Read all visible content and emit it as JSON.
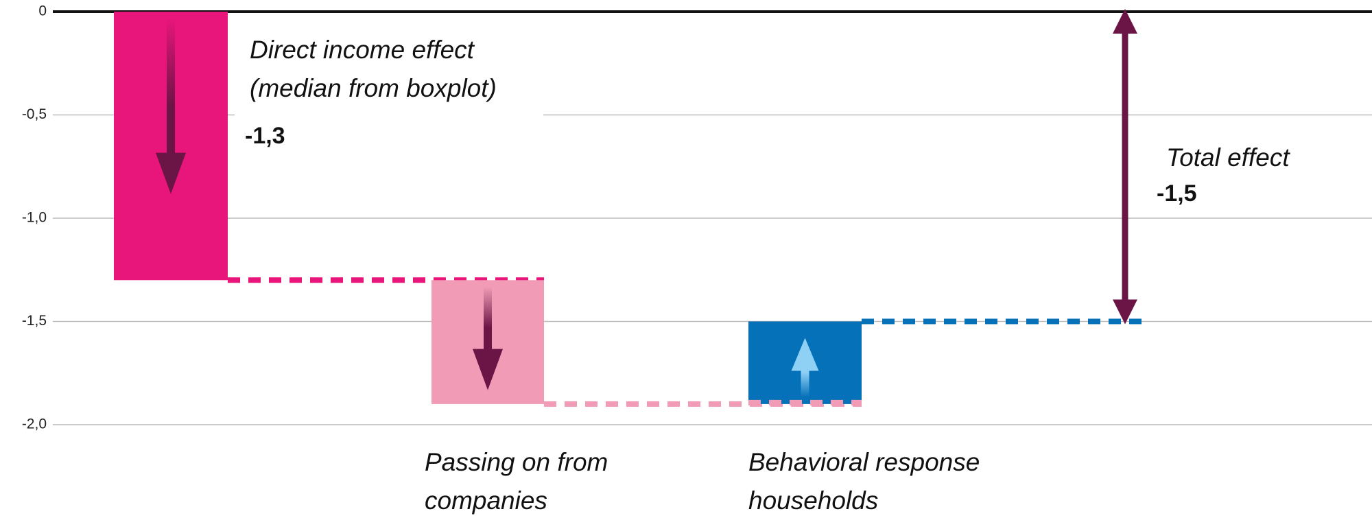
{
  "chart_data": {
    "type": "waterfall",
    "categories": [
      [
        "Direct income effect",
        "(median from boxplot)"
      ],
      [
        "Passing on from",
        "companies"
      ],
      [
        "Behavioral response",
        "households"
      ],
      [
        "Total effect"
      ]
    ],
    "values": [
      -1.3,
      -0.6,
      0.4,
      -1.5
    ],
    "value_labels": [
      "-1,3",
      null,
      null,
      "-1,5"
    ],
    "colors": [
      "#e8157a",
      "#f19bb6",
      "#0571b9",
      "#6b1446"
    ],
    "ylim": [
      -2.0,
      0
    ],
    "yticks": [
      0,
      {
        "value": -0.5,
        "label": "-0,5"
      },
      {
        "value": -1.0,
        "label": "-1,0"
      },
      {
        "value": -1.5,
        "label": "-1,5"
      },
      {
        "value": -2.0,
        "label": "-2,0"
      }
    ],
    "grid": true
  }
}
